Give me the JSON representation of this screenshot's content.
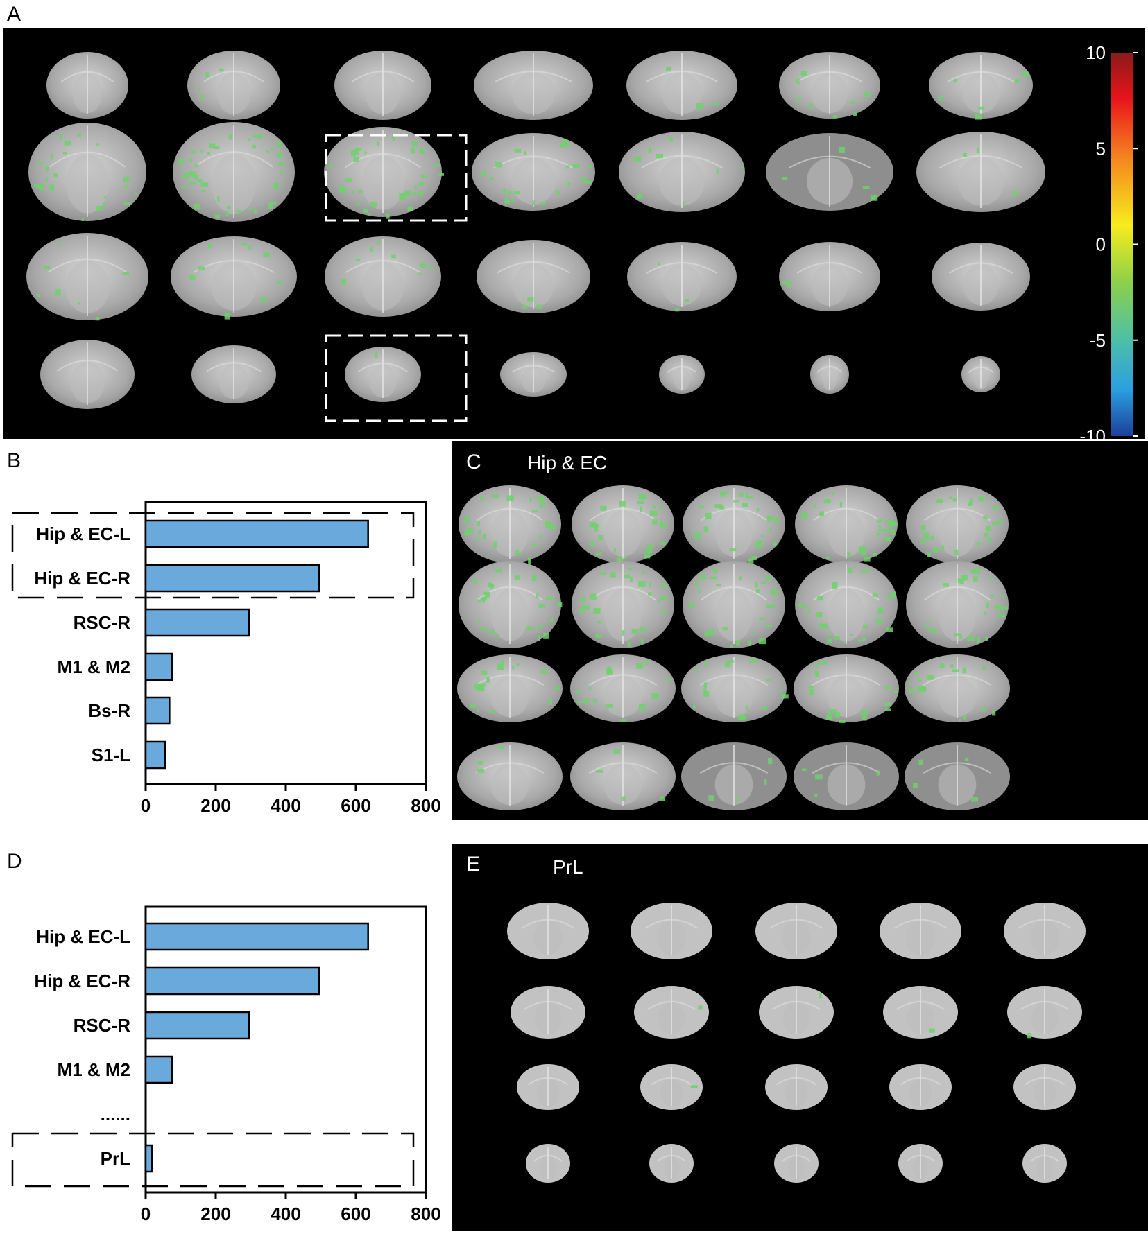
{
  "panels": {
    "A": {
      "letter": "A"
    },
    "B": {
      "letter": "B"
    },
    "C": {
      "letter": "C",
      "title": "Hip & EC"
    },
    "D": {
      "letter": "D"
    },
    "E": {
      "letter": "E",
      "title": "PrL"
    }
  },
  "colorbar": {
    "ticks": [
      "10",
      "5",
      "0",
      "-5",
      "-10"
    ],
    "range": [
      -10,
      10
    ]
  },
  "chart_data": [
    {
      "type": "bar",
      "orientation": "horizontal",
      "categories": [
        "Hip & EC-L",
        "Hip & EC-R",
        "RSC-R",
        "M1 & M2",
        "Bs-R",
        "S1-L"
      ],
      "values": [
        635,
        495,
        295,
        75,
        68,
        55
      ],
      "xlim": [
        0,
        800
      ],
      "xticks": [
        "0",
        "200",
        "400",
        "600",
        "800"
      ],
      "highlighted": [
        "Hip & EC-L",
        "Hip & EC-R"
      ]
    },
    {
      "type": "bar",
      "orientation": "horizontal",
      "categories": [
        "Hip & EC-L",
        "Hip & EC-R",
        "RSC-R",
        "M1 & M2",
        "PrL"
      ],
      "values": [
        635,
        495,
        295,
        75,
        18
      ],
      "ellipsis": "......",
      "xlim": [
        0,
        800
      ],
      "xticks": [
        "0",
        "200",
        "400",
        "600",
        "800"
      ],
      "highlighted": [
        "PrL"
      ]
    }
  ],
  "colors": {
    "bar": "#6aa9dc",
    "activation": "#6fd16b",
    "background": "#000000"
  }
}
